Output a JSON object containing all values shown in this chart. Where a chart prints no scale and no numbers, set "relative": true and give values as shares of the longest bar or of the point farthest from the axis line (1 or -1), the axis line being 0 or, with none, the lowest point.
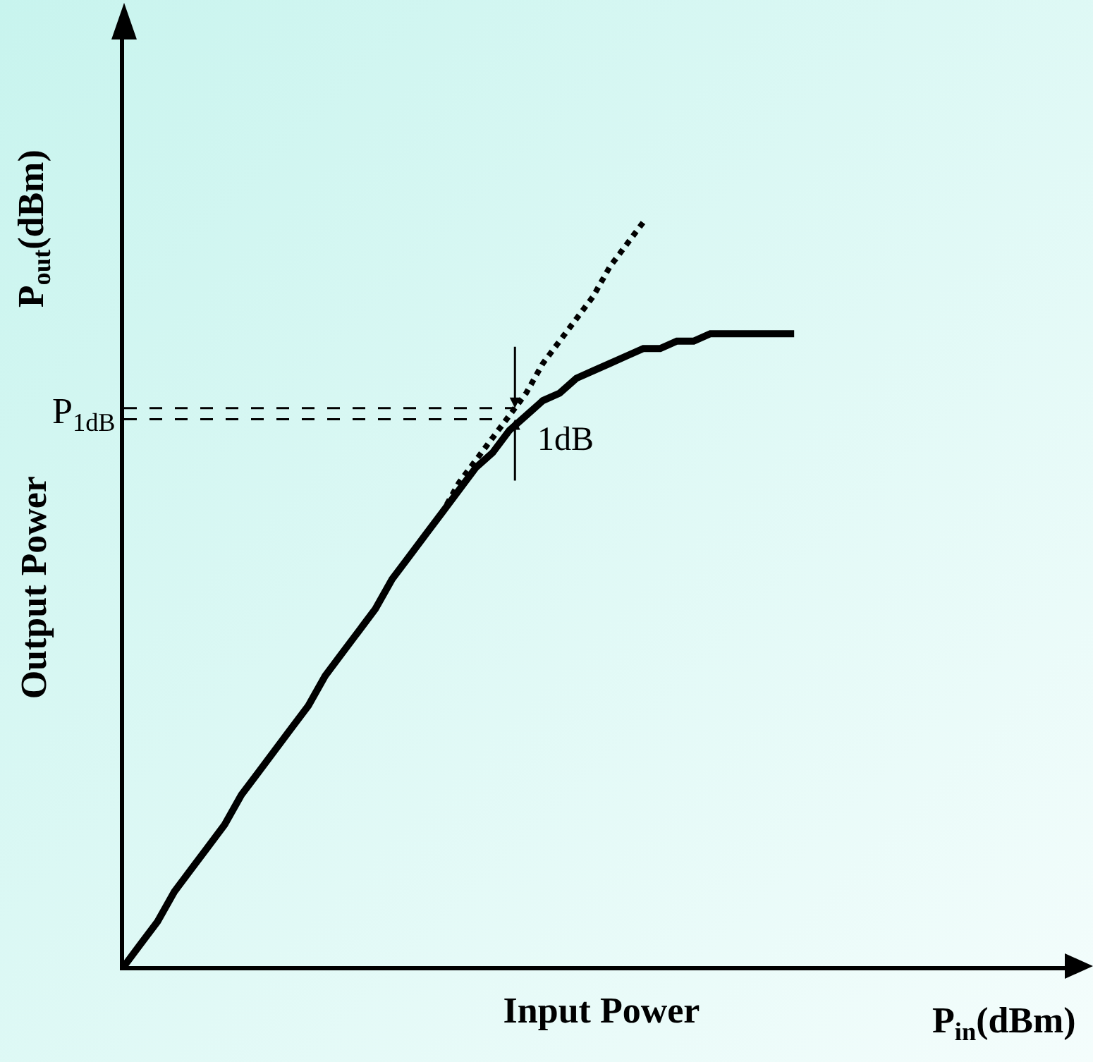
{
  "chart_data": {
    "type": "line",
    "relative": true,
    "xlabel": "Input Power",
    "ylabel": "Output Power",
    "categories": [
      null,
      null,
      null,
      null,
      null,
      null,
      null,
      null,
      null,
      null,
      null,
      null,
      null,
      null,
      null,
      null,
      null,
      null,
      null,
      null,
      null,
      null,
      null,
      null,
      null,
      null,
      null,
      null,
      null,
      null,
      null,
      null,
      null,
      null,
      null,
      null,
      null,
      null,
      null,
      null,
      null,
      null,
      null,
      null,
      null,
      null,
      null,
      null,
      null,
      null,
      null,
      null,
      null,
      null,
      null,
      null,
      null,
      null
    ],
    "series": [
      {
        "color": "#000000",
        "line_style": "dotted",
        "values": [
          0,
          0.03,
          0.06,
          0.1,
          0.13,
          0.16,
          0.19,
          0.23,
          0.26,
          0.29,
          0.32,
          0.35,
          0.39,
          0.42,
          0.45,
          0.48,
          0.52,
          0.55,
          0.58,
          0.61,
          0.65,
          0.68,
          0.71,
          0.74,
          0.77,
          0.81,
          0.84,
          0.87,
          0.9,
          0.94,
          0.97,
          1,
          null,
          null,
          null,
          null,
          null,
          null,
          null,
          null,
          null,
          null,
          null,
          null,
          null,
          null,
          null,
          null,
          null,
          null,
          null,
          null,
          null,
          null,
          null,
          null,
          null,
          null
        ]
      },
      {
        "color": "#000000",
        "line_style": "solid",
        "values": [
          0,
          0.03,
          0.06,
          0.1,
          0.13,
          0.16,
          0.19,
          0.23,
          0.26,
          0.29,
          0.32,
          0.35,
          0.39,
          0.42,
          0.45,
          0.48,
          0.52,
          0.55,
          0.58,
          0.61,
          0.64,
          0.67,
          0.69,
          0.72,
          0.74,
          0.76,
          0.77,
          0.79,
          0.8,
          0.81,
          0.82,
          0.83,
          0.83,
          0.84,
          0.84,
          0.85,
          0.85,
          0.85,
          0.85,
          0.85,
          0.85,
          null,
          null,
          null,
          null,
          null,
          null,
          null,
          null,
          null,
          null,
          null,
          null,
          null,
          null,
          null,
          null,
          null
        ]
      }
    ],
    "ref_lines": [
      {
        "axis": "y",
        "value": 0.75,
        "label": null,
        "line_style": "dashed"
      },
      {
        "axis": "y",
        "value": 0.735,
        "label": "P$_{1dB}$",
        "line_style": "dashed"
      }
    ],
    "annotations": [
      "P$_{in}$(dBm)",
      "P$_{out}$(dBm)",
      "1dB"
    ],
    "marker": "none"
  }
}
